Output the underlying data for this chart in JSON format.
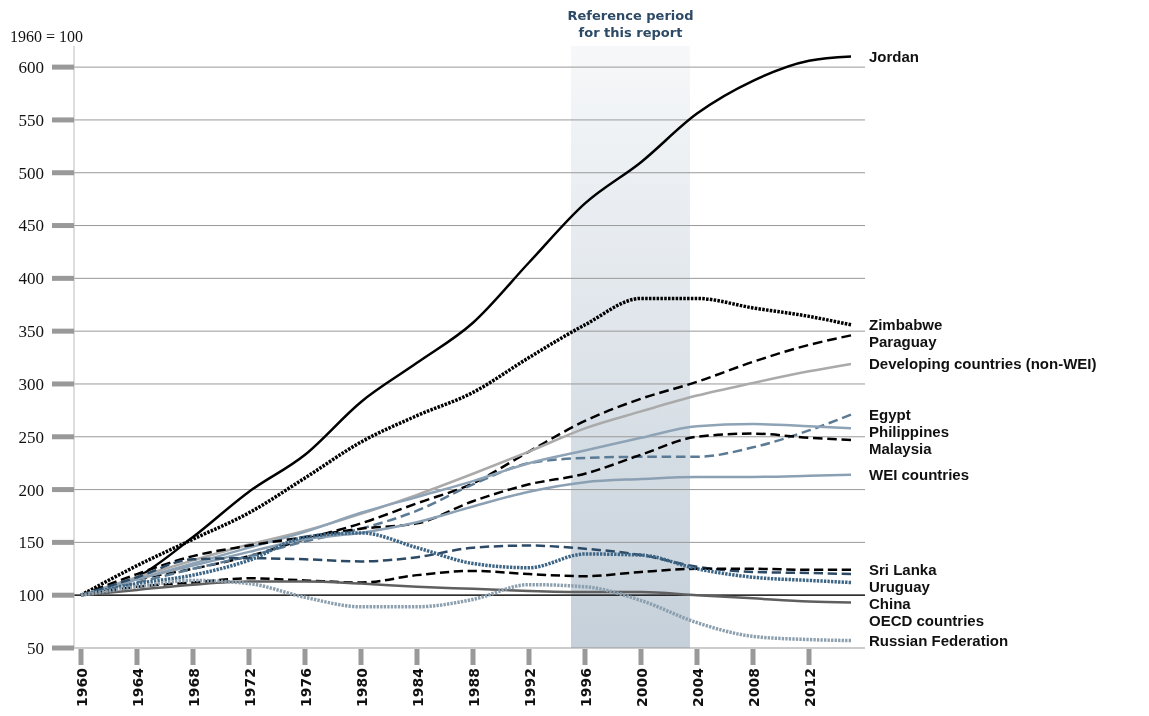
{
  "chart_data": {
    "type": "line",
    "ylabel": "1960 = 100",
    "x": [
      1960,
      1964,
      1968,
      1972,
      1976,
      1980,
      1984,
      1988,
      1992,
      1996,
      2000,
      2004,
      2008,
      2012,
      2015
    ],
    "xlim": [
      1959.5,
      2016
    ],
    "xticks": [
      1960,
      1964,
      1968,
      1972,
      1976,
      1980,
      1984,
      1988,
      1992,
      1996,
      2000,
      2004,
      2008,
      2012
    ],
    "ylim": [
      50,
      620
    ],
    "yticks": [
      50,
      100,
      150,
      200,
      250,
      300,
      350,
      400,
      450,
      500,
      550,
      600
    ],
    "grid": "y",
    "legend": false,
    "bands": [
      {
        "axis": "x",
        "from": 1995,
        "to": 2003.5,
        "label": "Reference period for this report",
        "color": "#c5d0da"
      }
    ],
    "ref_lines": [
      {
        "axis": "y",
        "value": 100,
        "color": "#000000"
      }
    ],
    "series": [
      {
        "name": "Jordan",
        "color": "#000000",
        "line_style": "solid",
        "values": [
          100,
          117,
          155,
          198,
          233,
          283,
          320,
          358,
          415,
          471,
          510,
          556,
          587,
          606,
          610
        ]
      },
      {
        "name": "Zimbabwe",
        "color": "#000000",
        "line_style": "dotted",
        "values": [
          100,
          128,
          153,
          178,
          211,
          245,
          270,
          292,
          325,
          356,
          381,
          381,
          372,
          364,
          356
        ]
      },
      {
        "name": "Paraguay",
        "color": "#000000",
        "line_style": "dashed",
        "values": [
          100,
          115,
          125,
          137,
          153,
          168,
          187,
          206,
          236,
          265,
          286,
          302,
          321,
          337,
          346
        ]
      },
      {
        "name": "Developing countries (non-WEI)",
        "color": "#aaaaaa",
        "line_style": "solid",
        "values": [
          100,
          117,
          133,
          148,
          161,
          177,
          195,
          215,
          236,
          258,
          274,
          289,
          301,
          312,
          319
        ]
      },
      {
        "name": "Egypt",
        "color": "#5b7a94",
        "line_style": "dashed",
        "values": [
          100,
          112,
          125,
          137,
          151,
          163,
          180,
          205,
          225,
          230,
          231,
          231,
          240,
          256,
          271
        ]
      },
      {
        "name": "Philippines",
        "color": "#8ea3b6",
        "line_style": "solid",
        "values": [
          100,
          115,
          130,
          145,
          160,
          178,
          193,
          208,
          225,
          237,
          249,
          260,
          262,
          260,
          258
        ]
      },
      {
        "name": "Malaysia",
        "color": "#000000",
        "line_style": "dashed",
        "values": [
          100,
          120,
          137,
          147,
          155,
          163,
          168,
          189,
          205,
          215,
          233,
          250,
          253,
          249,
          247
        ]
      },
      {
        "name": "WEI countries",
        "color": "#8ba0b3",
        "line_style": "solid",
        "values": [
          100,
          115,
          128,
          141,
          153,
          159,
          169,
          184,
          198,
          207,
          210,
          212,
          212,
          213,
          214
        ]
      },
      {
        "name": "Uruguay",
        "color": "#2c4a66",
        "line_style": "dashed",
        "values": [
          100,
          117,
          134,
          135,
          134,
          132,
          136,
          145,
          147,
          144,
          138,
          127,
          122,
          121,
          120
        ]
      },
      {
        "name": "Sri Lanka",
        "color": "#000000",
        "line_style": "dashed",
        "values": [
          100,
          108,
          112,
          116,
          114,
          112,
          119,
          123,
          120,
          118,
          122,
          125,
          125,
          124,
          124
        ]
      },
      {
        "name": "China",
        "color": "#3d6585",
        "line_style": "dotted",
        "values": [
          100,
          111,
          119,
          133,
          155,
          159,
          145,
          130,
          126,
          139,
          138,
          125,
          117,
          114,
          112
        ]
      },
      {
        "name": "OECD countries",
        "color": "#5f5f5f",
        "line_style": "solid",
        "values": [
          100,
          105,
          110,
          113,
          113,
          111,
          108,
          106,
          104,
          103,
          103,
          100,
          97,
          94,
          93
        ]
      },
      {
        "name": "Russian Federation",
        "color": "#8c9fae",
        "line_style": "dotted",
        "values": [
          100,
          108,
          114,
          111,
          98,
          89,
          89,
          96,
          110,
          108,
          95,
          74,
          61,
          58,
          57
        ]
      }
    ]
  }
}
